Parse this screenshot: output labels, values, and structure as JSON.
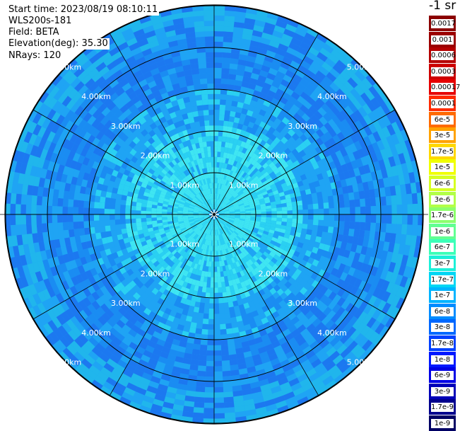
{
  "header": {
    "start_time": "Start time: 2023/08/19 08:10:11",
    "instrument": "WLS200s-181",
    "field": "Field: BETA",
    "elevation": "Elevation(deg): 35.30",
    "nrays": "NRays: 120"
  },
  "chart_data": {
    "type": "heatmap",
    "projection": "polar PPI",
    "range_rings": [
      "1.00km",
      "2.00km",
      "3.00km",
      "4.00km",
      "5.00km"
    ],
    "spokes_deg": [
      0,
      30,
      60,
      90,
      120,
      150,
      180,
      210,
      240,
      270,
      300,
      330
    ],
    "max_range_km": 5.0,
    "nrays": 120,
    "units": "-1 sr",
    "colorscale": [
      {
        "label": "0.0017",
        "color": "#8b0000"
      },
      {
        "label": "0.001",
        "color": "#9b0000"
      },
      {
        "label": "0.0006",
        "color": "#b40000"
      },
      {
        "label": "0.0003",
        "color": "#cd0000"
      },
      {
        "label": "0.00017",
        "color": "#e60000"
      },
      {
        "label": "0.0001",
        "color": "#ff2a00"
      },
      {
        "label": "6e-5",
        "color": "#ff6a00"
      },
      {
        "label": "3e-5",
        "color": "#ffa200"
      },
      {
        "label": "1.7e-5",
        "color": "#ffd800"
      },
      {
        "label": "1e-5",
        "color": "#f0ff00"
      },
      {
        "label": "6e-6",
        "color": "#d6ff22"
      },
      {
        "label": "3e-6",
        "color": "#b2ff48"
      },
      {
        "label": "1.7e-6",
        "color": "#8cff6c"
      },
      {
        "label": "1e-6",
        "color": "#62ff92"
      },
      {
        "label": "6e-7",
        "color": "#3cffb8"
      },
      {
        "label": "3e-7",
        "color": "#1cf0d8"
      },
      {
        "label": "1.7e-7",
        "color": "#00d6f4"
      },
      {
        "label": "1e-7",
        "color": "#00b4ff"
      },
      {
        "label": "6e-8",
        "color": "#008cff"
      },
      {
        "label": "3e-8",
        "color": "#0068ff"
      },
      {
        "label": "1.7e-8",
        "color": "#0040ff"
      },
      {
        "label": "1e-8",
        "color": "#0018ff"
      },
      {
        "label": "6e-9",
        "color": "#0000e6"
      },
      {
        "label": "3e-9",
        "color": "#0000b8"
      },
      {
        "label": "1.7e-9",
        "color": "#00008e"
      },
      {
        "label": "1e-9",
        "color": "#000064"
      }
    ],
    "field_colors": {
      "center": "#3fe6f2",
      "mid": "#1fa4f4",
      "outer": "#1c78f0",
      "edge": "#20b6ec"
    }
  }
}
